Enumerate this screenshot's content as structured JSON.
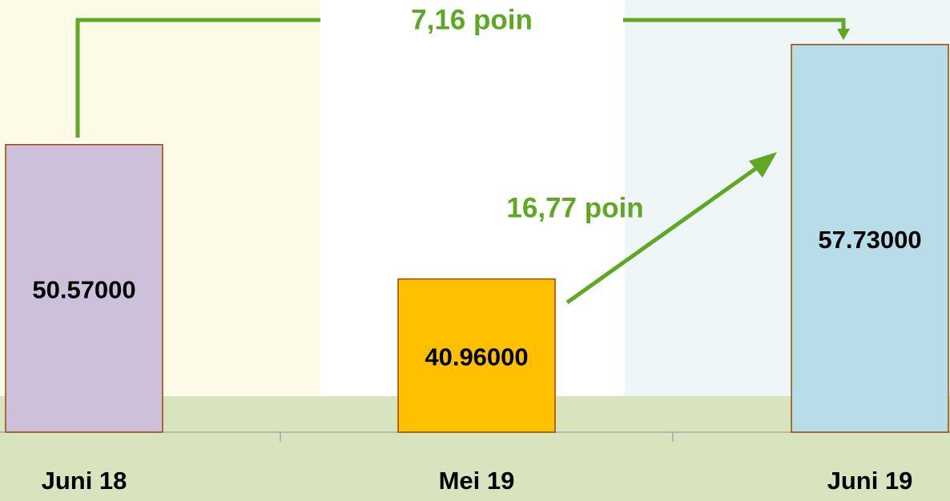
{
  "chart_data": {
    "type": "bar",
    "categories": [
      "Juni 18",
      "Mei 19",
      "Juni 19"
    ],
    "values": [
      50.57,
      40.96,
      57.73
    ],
    "value_labels": [
      "50.57000",
      "40.96000",
      "57.73000"
    ],
    "colors": [
      "#ccc0da",
      "#ffc000",
      "#b7dde8"
    ],
    "ylim": [
      30,
      60
    ],
    "annotations": [
      "7,16 poin",
      "16,77 poin"
    ]
  }
}
